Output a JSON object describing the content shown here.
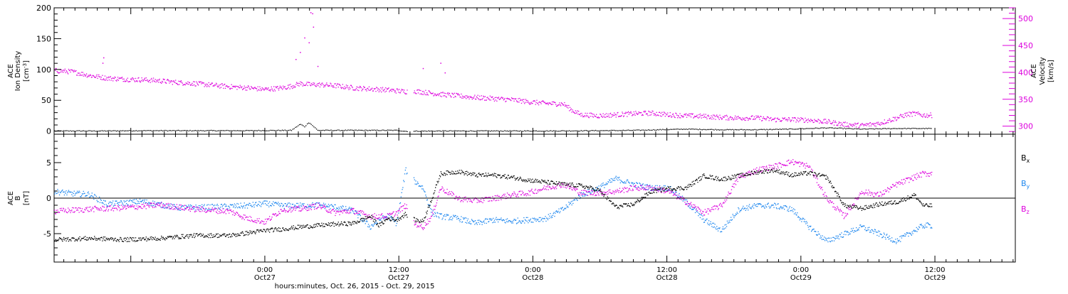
{
  "chart_data": [
    {
      "type": "scatter",
      "panel": "plasma",
      "left_axis": {
        "label_lines": [
          "ACE",
          "Ion Density"
        ],
        "unit_pre": "[cm",
        "unit_sup": "-3",
        "unit_post": "]",
        "ylim": [
          -5,
          200
        ],
        "ticks": [
          0,
          50,
          100,
          150,
          200
        ],
        "tick_labels": [
          "0",
          "50",
          "100",
          "150",
          "200"
        ]
      },
      "right_axis": {
        "label_lines": [
          "ACE",
          "Velocity",
          "[km/s]"
        ],
        "color": "#dd00dd",
        "ylim": [
          285,
          520
        ],
        "ticks": [
          300,
          350,
          400,
          450,
          500
        ],
        "tick_labels": [
          "300",
          "350",
          "400",
          "450",
          "500"
        ]
      },
      "series": [
        {
          "key": "density",
          "color": "#000000",
          "axis": "left",
          "values": [
            [
              0,
              1
            ],
            [
              5,
              1
            ],
            [
              10,
              1.5
            ],
            [
              16,
              1.5
            ],
            [
              22,
              1.5
            ],
            [
              27,
              2
            ],
            [
              28,
              12
            ],
            [
              28.5,
              8
            ],
            [
              29,
              15
            ],
            [
              30,
              2
            ],
            [
              33,
              2
            ],
            [
              36,
              2
            ],
            [
              39,
              2
            ],
            [
              40,
              0.5
            ],
            [
              44,
              1
            ],
            [
              50,
              1
            ],
            [
              56,
              1
            ],
            [
              62,
              1.5
            ],
            [
              66,
              2
            ],
            [
              72,
              4
            ],
            [
              76,
              3
            ],
            [
              80,
              3
            ],
            [
              84,
              4
            ],
            [
              88,
              6
            ],
            [
              92,
              4
            ],
            [
              96,
              5
            ]
          ]
        },
        {
          "key": "velocity",
          "color": "#dd00dd",
          "axis": "right",
          "values": [
            [
              0,
              404
            ],
            [
              2,
              402
            ],
            [
              4,
              395
            ],
            [
              6,
              390
            ],
            [
              8,
              388
            ],
            [
              10,
              387
            ],
            [
              12,
              385
            ],
            [
              14,
              382
            ],
            [
              16,
              380
            ],
            [
              18,
              377
            ],
            [
              20,
              374
            ],
            [
              22,
              372
            ],
            [
              24,
              369
            ],
            [
              26,
              372
            ],
            [
              27,
              375
            ],
            [
              28,
              380
            ],
            [
              29,
              378
            ],
            [
              30,
              378
            ],
            [
              32,
              376
            ],
            [
              34,
              372
            ],
            [
              36,
              370
            ],
            [
              38,
              368
            ],
            [
              40,
              365
            ],
            [
              41,
              366
            ],
            [
              42,
              364
            ],
            [
              44,
              360
            ],
            [
              46,
              357
            ],
            [
              48,
              354
            ],
            [
              50,
              352
            ],
            [
              52,
              350
            ],
            [
              54,
              346
            ],
            [
              56,
              343
            ],
            [
              58,
              342
            ],
            [
              59,
              330
            ],
            [
              60,
              322
            ],
            [
              62,
              320
            ],
            [
              64,
              322
            ],
            [
              66,
              324
            ],
            [
              68,
              325
            ],
            [
              70,
              322
            ],
            [
              72,
              320
            ],
            [
              74,
              319
            ],
            [
              76,
              317
            ],
            [
              78,
              316
            ],
            [
              80,
              316
            ],
            [
              82,
              313
            ],
            [
              84,
              313
            ],
            [
              86,
              312
            ],
            [
              88,
              309
            ],
            [
              90,
              304
            ],
            [
              92,
              302
            ],
            [
              94,
              306
            ],
            [
              96,
              316
            ],
            [
              97,
              322
            ],
            [
              98,
              324
            ],
            [
              99,
              321
            ]
          ],
          "scatter_points": [
            [
              5.5,
              418
            ],
            [
              5.6,
              428
            ],
            [
              28,
              438
            ],
            [
              28.5,
              465
            ],
            [
              29,
              456
            ],
            [
              29.2,
              512
            ],
            [
              29.4,
              510
            ],
            [
              29.5,
              485
            ],
            [
              27.5,
              425
            ],
            [
              30,
              412
            ],
            [
              42,
              408
            ],
            [
              44,
              418
            ],
            [
              44.5,
              400
            ]
          ]
        }
      ]
    },
    {
      "type": "scatter",
      "panel": "magnetic-field",
      "left_axis": {
        "label_lines": [
          "ACE",
          "B"
        ],
        "unit": "[nT]",
        "ylim": [
          -9,
          9
        ],
        "ticks": [
          -5,
          0,
          5
        ],
        "tick_labels": [
          "-5",
          "0",
          "5"
        ]
      },
      "legend": {
        "placement": "right",
        "entries": [
          {
            "base": "B",
            "sub": "x",
            "color": "#000000"
          },
          {
            "base": "B",
            "sub": "y",
            "color": "#1c86ee"
          },
          {
            "base": "B",
            "sub": "z",
            "color": "#dd00dd"
          }
        ]
      },
      "series": [
        {
          "key": "Bx",
          "color": "#000000",
          "values": [
            [
              0,
              -5.8
            ],
            [
              4,
              -5.6
            ],
            [
              8,
              -5.8
            ],
            [
              12,
              -5.6
            ],
            [
              16,
              -5.2
            ],
            [
              20,
              -5.2
            ],
            [
              24,
              -4.5
            ],
            [
              26,
              -4.3
            ],
            [
              28,
              -4.0
            ],
            [
              30,
              -3.8
            ],
            [
              32,
              -3.6
            ],
            [
              34,
              -3.5
            ],
            [
              36,
              -2.5
            ],
            [
              37,
              -3.8
            ],
            [
              38,
              -2.8
            ],
            [
              39,
              -3.0
            ],
            [
              40,
              -2.2
            ],
            [
              41,
              -3.0
            ],
            [
              42,
              -3.2
            ],
            [
              43,
              0
            ],
            [
              44,
              3.5
            ],
            [
              46,
              3.8
            ],
            [
              48,
              3.3
            ],
            [
              50,
              3.3
            ],
            [
              52,
              3.0
            ],
            [
              54,
              2.6
            ],
            [
              56,
              2.3
            ],
            [
              58,
              2.0
            ],
            [
              60,
              1.8
            ],
            [
              62,
              1.2
            ],
            [
              64,
              -1.2
            ],
            [
              66,
              -0.8
            ],
            [
              68,
              1.0
            ],
            [
              70,
              1.4
            ],
            [
              72,
              1.5
            ],
            [
              74,
              3.2
            ],
            [
              76,
              2.7
            ],
            [
              78,
              3.2
            ],
            [
              80,
              3.7
            ],
            [
              82,
              4.0
            ],
            [
              84,
              3.3
            ],
            [
              86,
              3.6
            ],
            [
              88,
              3.0
            ],
            [
              90,
              -1.0
            ],
            [
              92,
              -1.4
            ],
            [
              94,
              -0.8
            ],
            [
              96,
              -0.5
            ],
            [
              98,
              0.5
            ],
            [
              99,
              -1.0
            ]
          ]
        },
        {
          "key": "By",
          "color": "#1c86ee",
          "values": [
            [
              0,
              1.0
            ],
            [
              2,
              0.7
            ],
            [
              4,
              0.6
            ],
            [
              6,
              -0.8
            ],
            [
              10,
              -0.4
            ],
            [
              14,
              -1.3
            ],
            [
              18,
              -1.2
            ],
            [
              22,
              -1.0
            ],
            [
              24,
              -0.7
            ],
            [
              26,
              -1.0
            ],
            [
              28,
              -1.0
            ],
            [
              30,
              -0.9
            ],
            [
              32,
              -1.2
            ],
            [
              34,
              -1.7
            ],
            [
              36,
              -4.0
            ],
            [
              37,
              -3.0
            ],
            [
              38,
              -2.5
            ],
            [
              39,
              -3.5
            ],
            [
              40,
              4.0
            ],
            [
              41,
              2.5
            ],
            [
              42,
              1.5
            ],
            [
              43,
              -2.0
            ],
            [
              44,
              -2.5
            ],
            [
              46,
              -2.8
            ],
            [
              48,
              -3.5
            ],
            [
              50,
              -3.0
            ],
            [
              52,
              -3.2
            ],
            [
              54,
              -3.0
            ],
            [
              56,
              -2.8
            ],
            [
              58,
              -1.5
            ],
            [
              60,
              0.5
            ],
            [
              62,
              1.5
            ],
            [
              64,
              2.8
            ],
            [
              66,
              2.0
            ],
            [
              68,
              1.5
            ],
            [
              70,
              1.5
            ],
            [
              72,
              -0.5
            ],
            [
              74,
              -3.0
            ],
            [
              76,
              -4.5
            ],
            [
              78,
              -1.5
            ],
            [
              80,
              -1.0
            ],
            [
              82,
              -1.0
            ],
            [
              84,
              -1.5
            ],
            [
              86,
              -4.0
            ],
            [
              88,
              -6.0
            ],
            [
              90,
              -5.0
            ],
            [
              92,
              -4.0
            ],
            [
              94,
              -5.0
            ],
            [
              96,
              -6.0
            ],
            [
              98,
              -4.5
            ],
            [
              99,
              -3.8
            ]
          ]
        },
        {
          "key": "Bz",
          "color": "#dd00dd",
          "values": [
            [
              0,
              -1.8
            ],
            [
              4,
              -1.5
            ],
            [
              8,
              -1.3
            ],
            [
              12,
              -0.9
            ],
            [
              16,
              -1.5
            ],
            [
              20,
              -1.8
            ],
            [
              22,
              -2.8
            ],
            [
              24,
              -3.3
            ],
            [
              26,
              -1.5
            ],
            [
              28,
              -1.5
            ],
            [
              30,
              -1.0
            ],
            [
              32,
              -2.0
            ],
            [
              34,
              -1.7
            ],
            [
              36,
              -2.5
            ],
            [
              38,
              -2.5
            ],
            [
              39,
              -2.0
            ],
            [
              40,
              -1.0
            ],
            [
              41,
              -3.5
            ],
            [
              42,
              -4.0
            ],
            [
              43,
              -2.5
            ],
            [
              44,
              1.5
            ],
            [
              46,
              0
            ],
            [
              48,
              -0.3
            ],
            [
              50,
              0
            ],
            [
              52,
              0.5
            ],
            [
              54,
              0.8
            ],
            [
              56,
              1.5
            ],
            [
              58,
              2.0
            ],
            [
              60,
              0.8
            ],
            [
              62,
              0.8
            ],
            [
              64,
              1.0
            ],
            [
              66,
              1.5
            ],
            [
              68,
              1.5
            ],
            [
              70,
              1.0
            ],
            [
              72,
              -0.5
            ],
            [
              74,
              -2.0
            ],
            [
              76,
              -1.0
            ],
            [
              78,
              3.0
            ],
            [
              80,
              4.0
            ],
            [
              82,
              4.5
            ],
            [
              84,
              5.2
            ],
            [
              86,
              4.5
            ],
            [
              88,
              0
            ],
            [
              90,
              -2.5
            ],
            [
              92,
              1.0
            ],
            [
              94,
              0.5
            ],
            [
              96,
              2.0
            ],
            [
              98,
              3.0
            ],
            [
              99,
              3.5
            ]
          ]
        }
      ]
    }
  ],
  "x_axis": {
    "range": [
      "2015-10-26T05:08",
      "2015-10-29T19:12"
    ],
    "ticks": [
      {
        "t": "2015-10-27T00:00",
        "time": "0:00",
        "date": "Oct27"
      },
      {
        "t": "2015-10-27T12:00",
        "time": "12:00",
        "date": "Oct27"
      },
      {
        "t": "2015-10-28T00:00",
        "time": "0:00",
        "date": "Oct28"
      },
      {
        "t": "2015-10-28T12:00",
        "time": "12:00",
        "date": "Oct28"
      },
      {
        "t": "2015-10-29T00:00",
        "time": "0:00",
        "date": "Oct29"
      },
      {
        "t": "2015-10-29T12:00",
        "time": "12:00",
        "date": "Oct29"
      }
    ],
    "minor_ticks_per_major": 12,
    "label": "hours:minutes, Oct. 26, 2015 - Oct. 29, 2015",
    "data_series_x_range": [
      "2015-10-26T05:08",
      "2015-10-29T11:43"
    ]
  }
}
